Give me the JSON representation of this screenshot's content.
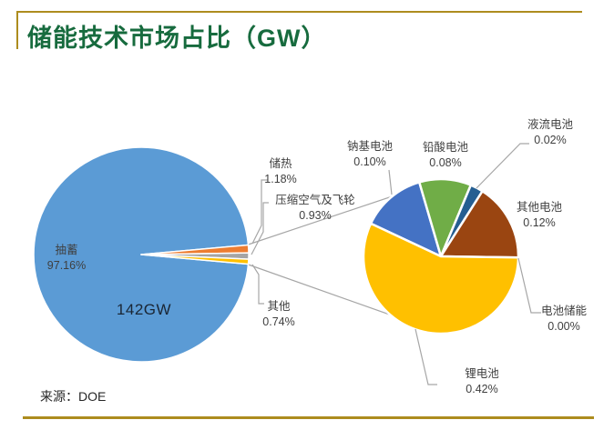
{
  "title": "储能技术市场占比（GW）",
  "source": "来源：DOE",
  "colors": {
    "accent_gold": "#ad8c1e",
    "title_green": "#176b3e",
    "connector_gray": "#a6a6a6",
    "label_text": "#3f3f3f"
  },
  "chart_data": {
    "type": "pie",
    "subtype": "pie-of-pie",
    "title": "储能技术市场占比（GW）",
    "unit": "GW",
    "total_label": "142GW",
    "primary": {
      "start_angle_deg": 95.13,
      "slices": [
        {
          "label": "抽蓄",
          "value": 97.16,
          "pct": "97.16%",
          "color": "#5b9bd5"
        },
        {
          "label": "储热",
          "value": 1.18,
          "pct": "1.18%",
          "color": "#ed7d31"
        },
        {
          "label": "压缩空气及飞轮",
          "value": 0.93,
          "pct": "0.93%",
          "color": "#a5a5a5"
        },
        {
          "label": "其他",
          "value": 0.74,
          "pct": "0.74%",
          "color": "#ffc000"
        }
      ]
    },
    "secondary": {
      "start_angle_deg": -64.86,
      "slices": [
        {
          "label": "钠基电池",
          "value": 0.1,
          "pct": "0.10%",
          "color": "#4472c4"
        },
        {
          "label": "铅酸电池",
          "value": 0.08,
          "pct": "0.08%",
          "color": "#70ad47"
        },
        {
          "label": "液流电池",
          "value": 0.02,
          "pct": "0.02%",
          "color": "#255e91"
        },
        {
          "label": "其他电池",
          "value": 0.12,
          "pct": "0.12%",
          "color": "#9a4511"
        },
        {
          "label": "电池储能",
          "value": 0.0,
          "pct": "0.00%",
          "color": "#ed7d31"
        },
        {
          "label": "锂电池",
          "value": 0.42,
          "pct": "0.42%",
          "color": "#ffc000"
        }
      ]
    }
  }
}
